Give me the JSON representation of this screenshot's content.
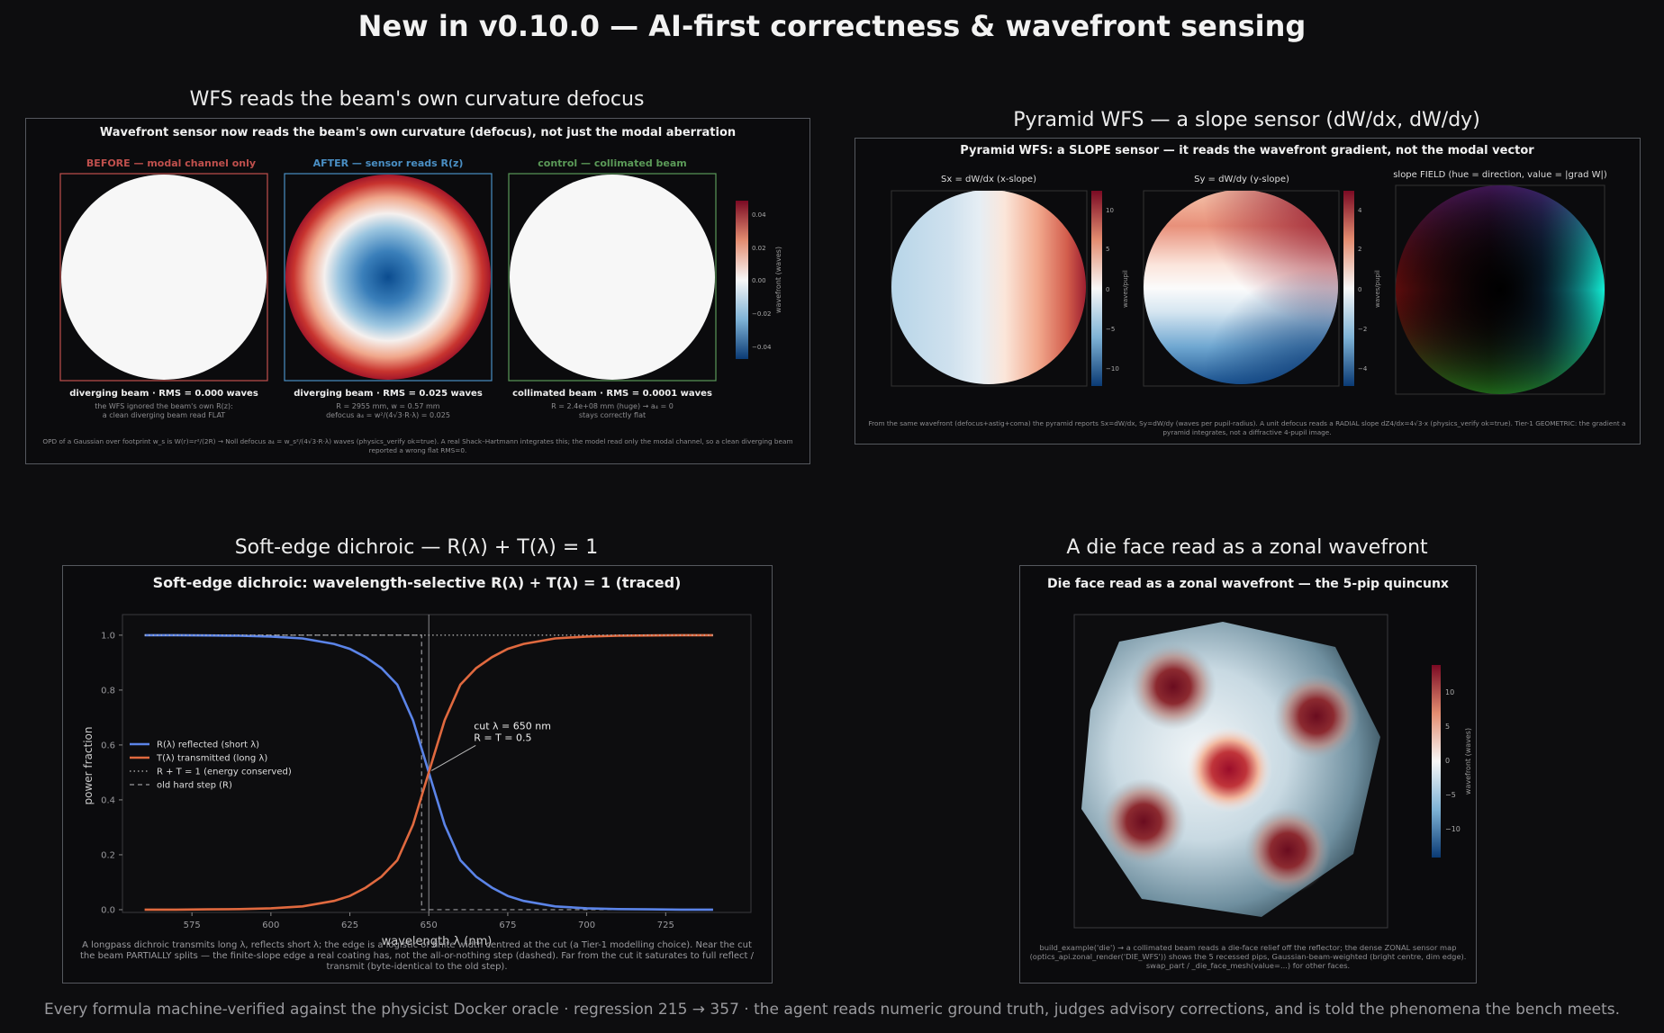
{
  "title": "New in v0.10.0 — AI-first correctness & wavefront sensing",
  "footer": "Every formula machine-verified against the physicist Docker oracle · regression 215 → 357 · the agent reads numeric ground truth, judges advisory corrections, and is told the phenomena the bench meets.",
  "colors": {
    "background": "#0d0d0f",
    "reflected": "#5b84e8",
    "transmitted": "#e0693f",
    "before": "#c0504d",
    "after": "#4a8fc4",
    "control": "#5b9a58"
  },
  "panel_wfs": {
    "heading": "WFS reads the beam's own curvature defocus",
    "inner_title": "Wavefront sensor now reads the beam's own curvature (defocus), not just the modal aberration",
    "sub_before": "BEFORE — modal channel only",
    "sub_after": "AFTER — sensor reads R(z)",
    "sub_control": "control — collimated beam",
    "cap_before": "diverging beam  ·  RMS = 0.000 waves",
    "cap_after": "diverging beam  ·  RMS = 0.025 waves",
    "cap_control": "collimated beam  ·  RMS = 0.0001 waves",
    "note_before_1": "the WFS ignored the beam's own R(z):",
    "note_before_2": "a clean diverging beam read FLAT",
    "note_after_1": "R = 2955 mm,  w = 0.57 mm",
    "note_after_2": "defocus a₄ = w²/(4√3·R·λ) = 0.025",
    "note_control_1": "R = 2.4e+08 mm  (huge) → a₄ = 0",
    "note_control_2": "stays correctly flat",
    "colorbar_label": "wavefront  (waves)",
    "colorbar_ticks": [
      "0.04",
      "0.02",
      "0.00",
      "−0.02",
      "−0.04"
    ],
    "footnote_1": "OPD of a Gaussian over footprint w_s is W(r)=r²/(2R)  →  Noll defocus  a₄ = w_s²/(4√3·R·λ) waves (physics_verify ok=true).  A real Shack–Hartmann integrates this; the model read only the modal channel, so a clean diverging beam",
    "footnote_2": "reported a wrong flat RMS=0."
  },
  "panel_pyramid": {
    "heading": "Pyramid WFS — a slope sensor (dW/dx, dW/dy)",
    "inner_title": "Pyramid WFS: a SLOPE sensor — it reads the wavefront gradient, not the modal vector",
    "sub_sx": "Sx = dW/dx  (x-slope)",
    "sub_sy": "Sy = dW/dy  (y-slope)",
    "sub_field": "slope FIELD  (hue = direction, value = |grad W|)",
    "cb_label": "waves/pupil",
    "cb_sx_ticks": [
      "10",
      "5",
      "0",
      "−5",
      "−10"
    ],
    "cb_sy_ticks": [
      "4",
      "2",
      "0",
      "−2",
      "−4"
    ],
    "footnote_1": "From the same wavefront (defocus+astig+coma) the pyramid reports Sx=dW/dx, Sy=dW/dy (waves per pupil-radius). A unit defocus reads a RADIAL slope dZ4/dx=4√3·x (physics_verify ok=true). Tier-1 GEOMETRIC: the gradient a",
    "footnote_2": "pyramid integrates, not a diffractive 4-pupil image."
  },
  "panel_dichroic": {
    "heading": "Soft-edge dichroic — R(λ) + T(λ) = 1",
    "footnote_1": "A longpass dichroic transmits long λ, reflects short λ; the edge is a logistic of finite width centred at the cut (a Tier-1 modelling choice). Near the cut",
    "footnote_2": "the beam PARTIALLY splits — the finite-slope edge a real coating has, not the all-or-nothing step (dashed). Far from the cut it saturates to full reflect /",
    "footnote_3": "transmit (byte-identical to the old step)."
  },
  "panel_die": {
    "heading": "A die face read as a zonal wavefront",
    "inner_title": "Die face read as a zonal wavefront — the 5-pip quincunx",
    "cb_label": "wavefront  (waves)",
    "cb_ticks": [
      "10",
      "5",
      "0",
      "−5",
      "−10"
    ],
    "footnote_1": "build_example('die') → a collimated beam reads a die-face relief off the reflector; the dense ZONAL sensor map",
    "footnote_2": "(optics_api.zonal_render('DIE_WFS')) shows the 5 recessed pips, Gaussian-beam-weighted (bright centre, dim edge).",
    "footnote_3": "swap_part / _die_face_mesh(value=...) for other faces."
  },
  "chart_data": {
    "type": "line",
    "title": "Soft-edge dichroic: wavelength-selective R(λ) + T(λ) = 1 (traced)",
    "xlabel": "wavelength λ (nm)",
    "ylabel": "power fraction",
    "xlim": [
      553,
      752
    ],
    "ylim": [
      -0.01,
      1.075
    ],
    "xticks": [
      575,
      600,
      625,
      650,
      675,
      700,
      725
    ],
    "yticks": [
      0.0,
      0.2,
      0.4,
      0.6,
      0.8,
      1.0
    ],
    "x": [
      560,
      570,
      580,
      590,
      600,
      610,
      620,
      625,
      630,
      635,
      640,
      645,
      650,
      655,
      660,
      665,
      670,
      675,
      680,
      690,
      700,
      710,
      720,
      730,
      740
    ],
    "series": [
      {
        "name": "R(λ) reflected  (short λ)",
        "values": [
          1.0,
          1.0,
          0.999,
          0.998,
          0.995,
          0.988,
          0.968,
          0.95,
          0.92,
          0.88,
          0.82,
          0.69,
          0.5,
          0.31,
          0.18,
          0.12,
          0.08,
          0.05,
          0.032,
          0.012,
          0.005,
          0.002,
          0.001,
          0.0,
          0.0
        ]
      },
      {
        "name": "T(λ) transmitted  (long λ)",
        "values": [
          0.0,
          0.0,
          0.001,
          0.002,
          0.005,
          0.012,
          0.032,
          0.05,
          0.08,
          0.12,
          0.18,
          0.31,
          0.5,
          0.69,
          0.82,
          0.88,
          0.92,
          0.95,
          0.968,
          0.988,
          0.995,
          0.998,
          0.999,
          1.0,
          1.0
        ]
      },
      {
        "name": "R + T = 1  (energy conserved)",
        "values": [
          1,
          1,
          1,
          1,
          1,
          1,
          1,
          1,
          1,
          1,
          1,
          1,
          1,
          1,
          1,
          1,
          1,
          1,
          1,
          1,
          1,
          1,
          1,
          1,
          1
        ]
      }
    ],
    "hard_step": {
      "name": "old hard step (R)",
      "cut": 650
    },
    "annotation": {
      "line1": "cut λ = 650 nm",
      "line2": "R = T = 0.5",
      "x": 650,
      "y": 0.5
    },
    "legend_position": "center-left",
    "grid": false
  }
}
